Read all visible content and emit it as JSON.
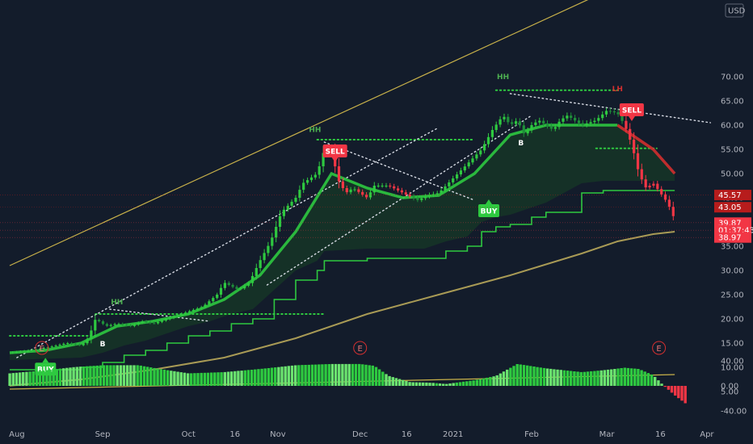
{
  "chart_data": {
    "type": "line",
    "currency": "USD",
    "price_ticks": [
      "70.00",
      "65.00",
      "60.00",
      "55.00",
      "50.00",
      "45.00",
      "40.00",
      "35.00",
      "30.00",
      "25.00",
      "20.00",
      "15.00",
      "10.00",
      "5.00"
    ],
    "osc_ticks": [
      "40.00",
      "0.00",
      "-40.00"
    ],
    "x_labels": [
      "Aug",
      "Sep",
      "Oct",
      "16",
      "Nov",
      "Dec",
      "16",
      "2021",
      "Feb",
      "Mar",
      "16",
      "Apr"
    ],
    "price_tags": [
      {
        "name": "high-tag",
        "label": "45.57",
        "color": "#b71c1c",
        "y": 45.57
      },
      {
        "name": "level-tag",
        "label": "43.05",
        "color": "#b71c1c",
        "y": 43.05
      },
      {
        "name": "last-price-tag",
        "label": "39.87",
        "color": "#f23645",
        "y": 39.87
      },
      {
        "name": "countdown-tag",
        "label": "01:37:43",
        "color": "#f23645",
        "y": 38.3
      },
      {
        "name": "low-tag",
        "label": "38.97",
        "color": "#f23645",
        "y": 36.8
      }
    ],
    "signals": [
      {
        "name": "buy-signal-aug",
        "label": "BUY",
        "type": "buy",
        "x": 0.5,
        "y": 12.3
      },
      {
        "name": "sell-signal-dec",
        "label": "SELL",
        "type": "sell",
        "x": 4.55,
        "y": 52
      },
      {
        "name": "buy-signal-jan",
        "label": "BUY",
        "type": "buy",
        "x": 6.7,
        "y": 45
      },
      {
        "name": "sell-signal-feb",
        "label": "SELL",
        "type": "sell",
        "x": 8.7,
        "y": 60.5
      }
    ],
    "annotations": [
      {
        "name": "hh-label-sep",
        "label": "HH",
        "color": "#4caf50",
        "x": 1.5,
        "y": 23
      },
      {
        "name": "hh-label-nov",
        "label": "HH",
        "color": "#4caf50",
        "x": 4.27,
        "y": 58.6
      },
      {
        "name": "hh-label-jan",
        "label": "HH",
        "color": "#4caf50",
        "x": 6.9,
        "y": 69.5
      },
      {
        "name": "lh-label-feb",
        "label": "LH",
        "color": "#d32f2f",
        "x": 8.5,
        "y": 67
      },
      {
        "name": "b-label-aug",
        "label": "B",
        "color": "#ffffff",
        "x": 1.3,
        "y": 14.3
      },
      {
        "name": "b-label-jan",
        "label": "B",
        "color": "#ffffff",
        "x": 7.15,
        "y": 55.8
      }
    ],
    "earnings": [
      {
        "name": "earnings-marker-aug",
        "label": "E",
        "x": 0.45
      },
      {
        "name": "earnings-marker-nov",
        "label": "E",
        "x": 4.9
      },
      {
        "name": "earnings-marker-feb",
        "label": "E",
        "x": 9.08
      }
    ],
    "close_series": {
      "x": [
        0,
        0.3,
        0.5,
        0.8,
        1,
        1.1,
        1.2,
        1.35,
        1.5,
        1.7,
        1.85,
        2,
        2.1,
        2.3,
        2.5,
        2.7,
        2.9,
        3.0,
        3.2,
        3.35,
        3.5,
        3.65,
        3.8,
        4.0,
        4.1,
        4.3,
        4.4,
        4.5,
        4.6,
        4.7,
        4.8,
        5.0,
        5.1,
        5.3,
        5.5,
        5.7,
        5.85,
        6.0,
        6.2,
        6.4,
        6.6,
        6.75,
        6.9,
        7.0,
        7.1,
        7.2,
        7.3,
        7.4,
        7.5,
        7.6,
        7.7,
        7.8,
        8.0,
        8.2,
        8.35,
        8.5,
        8.6,
        8.7,
        8.8,
        8.9,
        9.0,
        9.1,
        9.2,
        9.3
      ],
      "y": [
        13,
        13.5,
        14,
        15,
        14.5,
        16,
        20,
        18.5,
        19,
        18.5,
        19.5,
        19,
        19.5,
        20.5,
        21.5,
        22.5,
        25,
        27.5,
        26,
        27.5,
        32,
        36,
        42,
        45,
        48,
        50,
        55,
        54.5,
        48.5,
        46,
        47,
        45,
        47.5,
        47.5,
        46,
        44.5,
        45.5,
        46,
        49,
        52,
        55,
        59,
        62,
        60,
        61,
        58,
        60,
        61,
        60,
        59,
        61,
        62,
        60,
        61,
        63,
        62.5,
        60,
        56,
        50,
        47,
        48,
        46,
        44,
        40.5
      ]
    },
    "ema_series": {
      "x": [
        0,
        0.5,
        1,
        1.5,
        2,
        2.5,
        3,
        3.5,
        4,
        4.5,
        5,
        5.5,
        6,
        6.5,
        7,
        7.5,
        8,
        8.5,
        9,
        9.3
      ],
      "y": [
        13,
        13.5,
        15,
        18.5,
        19.5,
        21,
        24,
        29,
        38,
        50,
        47,
        45,
        45.5,
        50,
        58,
        60,
        60,
        60,
        55,
        50
      ]
    },
    "support_steps": {
      "x": [
        0,
        1,
        1.3,
        1.6,
        1.9,
        2.2,
        2.5,
        2.8,
        3.1,
        3.4,
        3.7,
        4.0,
        4.3,
        4.4,
        5.0,
        5.8,
        6.1,
        6.4,
        6.6,
        6.8,
        7.0,
        7.3,
        7.5,
        8.0,
        8.3,
        8.5,
        8.6,
        9.0,
        9.3
      ],
      "y": [
        9.5,
        10,
        11,
        12.5,
        13.5,
        15,
        16.5,
        17.5,
        19,
        20,
        24,
        28,
        30,
        32,
        32.5,
        32.5,
        34,
        35,
        38,
        39,
        39.5,
        41,
        42,
        46,
        46.5,
        46.5,
        46.5,
        46.5,
        46.5
      ]
    },
    "sma_series": {
      "x": [
        0,
        1,
        2,
        3,
        3.5,
        4,
        5,
        6,
        7,
        8,
        8.5,
        9,
        9.3
      ],
      "y": [
        6.2,
        7.5,
        9.5,
        12,
        14,
        16,
        21,
        25,
        29,
        33.5,
        36,
        37.5,
        38
      ]
    },
    "channel_top": {
      "x": [
        0,
        8.1
      ],
      "y": [
        31,
        86
      ]
    },
    "channel_bottom": {
      "x": [
        0,
        9.3
      ],
      "y": [
        5.5,
        8.5
      ]
    },
    "trend_lines": [
      {
        "name": "uptrend-line-1",
        "x": [
          0.1,
          6
        ],
        "y": [
          12,
          59.5
        ]
      },
      {
        "name": "uptrend-line-2",
        "x": [
          3.6,
          7.3
        ],
        "y": [
          27,
          62
        ]
      },
      {
        "name": "resistance-line-sep",
        "x": [
          1.4,
          2.8
        ],
        "y": [
          22,
          19.5
        ]
      },
      {
        "name": "resistance-line-dec",
        "x": [
          4.4,
          6.5
        ],
        "y": [
          56.5,
          44.5
        ]
      },
      {
        "name": "resistance-line-feb",
        "x": [
          7,
          9.8
        ],
        "y": [
          66.5,
          60.5
        ]
      }
    ],
    "level_lines": [
      {
        "name": "level-line-aug",
        "x": [
          0,
          1.2
        ],
        "y": [
          16.5,
          16.5
        ]
      },
      {
        "name": "level-line-sep",
        "x": [
          1.2,
          4.4
        ],
        "y": [
          21,
          21
        ]
      },
      {
        "name": "level-line-nov",
        "x": [
          4.3,
          6.5
        ],
        "y": [
          57,
          57
        ]
      },
      {
        "name": "level-line-jan",
        "x": [
          6.8,
          8.55
        ],
        "y": [
          67.2,
          67.2
        ]
      },
      {
        "name": "level-line-feb",
        "x": [
          8.2,
          9.05
        ],
        "y": [
          55.2,
          55.2
        ]
      }
    ],
    "oscillator": {
      "x": [
        0,
        0.5,
        0.9,
        1.3,
        1.8,
        2.1,
        2.5,
        3.0,
        3.5,
        4.0,
        4.5,
        4.9,
        5.1,
        5.3,
        5.6,
        5.9,
        6.1,
        6.5,
        6.8,
        7.1,
        7.5,
        8.0,
        8.3,
        8.6,
        8.8,
        9.0,
        9.15,
        9.3,
        9.45
      ],
      "y": [
        20,
        25,
        30,
        33,
        33,
        27,
        20,
        22,
        27,
        33,
        35,
        35,
        32,
        16,
        6,
        5,
        3,
        9,
        16,
        35,
        28,
        22,
        25,
        29,
        27,
        17,
        0,
        -15,
        -28
      ]
    },
    "price_axis": {
      "min": 5,
      "max": 70
    },
    "osc_axis": {
      "min": -40,
      "max": 40
    },
    "grid": "off",
    "legend": "none"
  }
}
